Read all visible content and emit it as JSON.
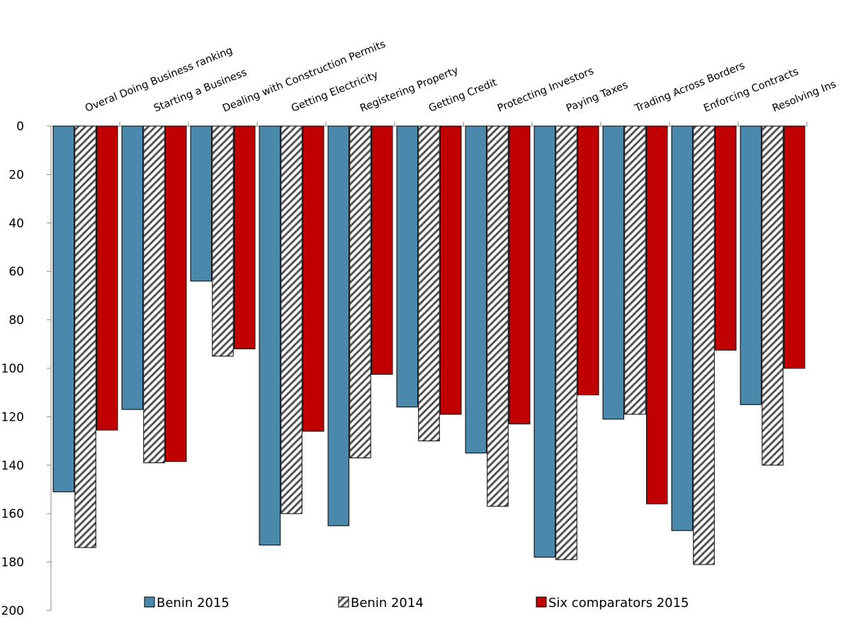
{
  "chart_data": {
    "type": "bar",
    "orientation": "vertical-inverted",
    "title": "",
    "xlabel": "",
    "ylabel": "",
    "ylim": [
      0,
      200
    ],
    "yticks": [
      0,
      20,
      40,
      60,
      80,
      100,
      120,
      140,
      160,
      180,
      200
    ],
    "grid": false,
    "legend_position": "bottom",
    "categories": [
      "Overal Doing Business ranking",
      "Starting a Business",
      "Dealing with Construction Permits",
      "Getting Electricity",
      "Registering Property",
      "Getting Credit",
      "Protecting Investors",
      "Paying Taxes",
      "Trading Across Borders",
      "Enforcing Contracts",
      "Resolving Ins"
    ],
    "series": [
      {
        "name": "Benin 2015",
        "color": "#4a88ac",
        "pattern": "solid",
        "values": [
          151,
          117,
          64,
          173,
          165,
          116,
          135,
          178,
          121,
          167,
          115
        ]
      },
      {
        "name": "Benin 2014",
        "color": "#e8e8e8",
        "pattern": "diagonal-hatch",
        "values": [
          174,
          139,
          95,
          160,
          137,
          130,
          157,
          179,
          119,
          181,
          140
        ]
      },
      {
        "name": "Six comparators 2015",
        "color": "#c00000",
        "pattern": "solid",
        "values": [
          125.5,
          138.5,
          92,
          126,
          102.5,
          119,
          123,
          111,
          156,
          92.5,
          100
        ]
      }
    ]
  }
}
